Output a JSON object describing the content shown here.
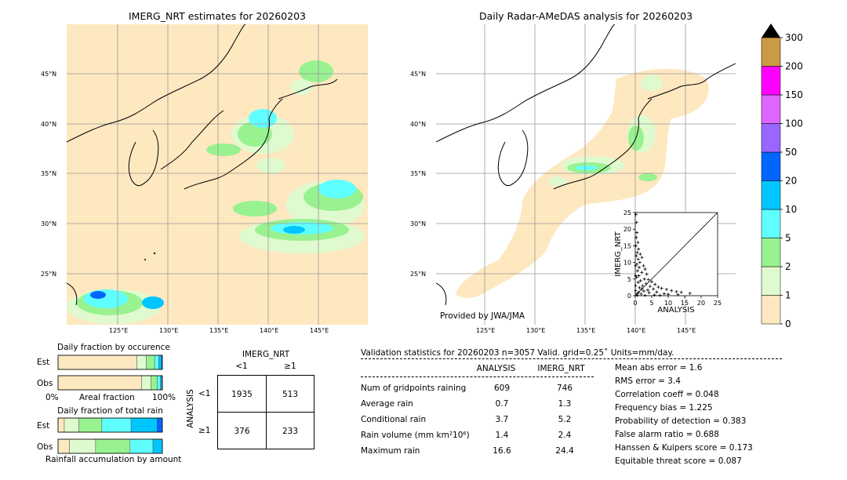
{
  "left_map": {
    "title": "IMERG_NRT estimates for 20260203",
    "lat_labels": [
      "45°N",
      "40°N",
      "35°N",
      "30°N",
      "25°N"
    ],
    "lon_labels": [
      "125°E",
      "130°E",
      "135°E",
      "140°E",
      "145°E"
    ]
  },
  "right_map": {
    "title": "Daily Radar-AMeDAS analysis for 20260203",
    "lat_labels": [
      "45°N",
      "40°N",
      "35°N",
      "30°N",
      "25°N"
    ],
    "lon_labels": [
      "125°E",
      "130°E",
      "135°E",
      "140°E",
      "145°E"
    ],
    "credit": "Provided by JWA/JMA"
  },
  "colorbar": {
    "labels": [
      "0",
      "1",
      "2",
      "5",
      "10",
      "20",
      "50",
      "100",
      "150",
      "200",
      "300"
    ],
    "colors": [
      "#fde8c0",
      "#e0fad0",
      "#98f290",
      "#60ffff",
      "#00c6ff",
      "#0066ff",
      "#9966ff",
      "#dd66ff",
      "#ff00ff",
      "#cc9944"
    ],
    "extend_color": "#000000"
  },
  "chart_data": [
    {
      "type": "scatter",
      "xlabel": "ANALYSIS",
      "ylabel": "IMERG_NRT",
      "xlim": [
        0,
        25
      ],
      "ylim": [
        0,
        25
      ],
      "xticks": [
        "0",
        "5",
        "10",
        "15",
        "20",
        "25"
      ],
      "yticks": [
        "0",
        "5",
        "10",
        "15",
        "20",
        "25"
      ],
      "diagonal": true,
      "points": [
        [
          0.2,
          24.4
        ],
        [
          0.4,
          22
        ],
        [
          0.5,
          19
        ],
        [
          0.3,
          17.5
        ],
        [
          0.8,
          16
        ],
        [
          0.2,
          15
        ],
        [
          1,
          14
        ],
        [
          0.6,
          13
        ],
        [
          1.5,
          12.5
        ],
        [
          0.3,
          12
        ],
        [
          2,
          11.5
        ],
        [
          0.9,
          11
        ],
        [
          1.4,
          10
        ],
        [
          0.5,
          9.5
        ],
        [
          2.5,
          9
        ],
        [
          1.2,
          8.5
        ],
        [
          3,
          8
        ],
        [
          0.7,
          7.5
        ],
        [
          2,
          7
        ],
        [
          3.5,
          6.5
        ],
        [
          1.1,
          6
        ],
        [
          0.4,
          5.5
        ],
        [
          2.8,
          5
        ],
        [
          4,
          4.8
        ],
        [
          1.6,
          4.5
        ],
        [
          5,
          4.2
        ],
        [
          0.9,
          4
        ],
        [
          3.3,
          3.6
        ],
        [
          6,
          3.4
        ],
        [
          2.2,
          3
        ],
        [
          4.5,
          2.8
        ],
        [
          7,
          2.6
        ],
        [
          1.3,
          2.4
        ],
        [
          8,
          2.2
        ],
        [
          5.5,
          2
        ],
        [
          9.5,
          1.9
        ],
        [
          3.8,
          1.7
        ],
        [
          11,
          1.5
        ],
        [
          2.6,
          1.4
        ],
        [
          12.5,
          1.2
        ],
        [
          6.5,
          1.1
        ],
        [
          14,
          1
        ],
        [
          4.2,
          0.9
        ],
        [
          16.6,
          0.7
        ],
        [
          8.8,
          0.6
        ],
        [
          1.8,
          0.5
        ],
        [
          10,
          0.4
        ],
        [
          13,
          0.3
        ],
        [
          5.8,
          0.2
        ],
        [
          0.6,
          0.1
        ],
        [
          3,
          0.1
        ],
        [
          7.5,
          0.1
        ],
        [
          0.1,
          3
        ],
        [
          0.1,
          6
        ],
        [
          0.1,
          9
        ],
        [
          0.1,
          1.5
        ],
        [
          1,
          1
        ],
        [
          2,
          2
        ],
        [
          0.5,
          0.5
        ]
      ]
    },
    {
      "type": "bar",
      "title": "Daily fraction by occurence",
      "orientation": "horizontal-stacked",
      "categories": [
        "Est",
        "Obs"
      ],
      "series": [
        {
          "color": "#fde8c0",
          "values": [
            0.756,
            0.801
          ]
        },
        {
          "color": "#e0fad0",
          "values": [
            0.09,
            0.09
          ]
        },
        {
          "color": "#98f290",
          "values": [
            0.08,
            0.06
          ]
        },
        {
          "color": "#60ffff",
          "values": [
            0.04,
            0.03
          ]
        },
        {
          "color": "#00c6ff",
          "values": [
            0.025,
            0.015
          ]
        },
        {
          "color": "#0066ff",
          "values": [
            0.009,
            0.004
          ]
        }
      ],
      "xlabel": "Areal fraction",
      "xmin_label": "0%",
      "xmax_label": "100%"
    },
    {
      "type": "bar",
      "title": "Daily fraction of total rain",
      "orientation": "horizontal-stacked",
      "categories": [
        "Est",
        "Obs"
      ],
      "series": [
        {
          "color": "#fde8c0",
          "values": [
            0.06,
            0.11
          ]
        },
        {
          "color": "#e0fad0",
          "values": [
            0.14,
            0.25
          ]
        },
        {
          "color": "#98f290",
          "values": [
            0.22,
            0.33
          ]
        },
        {
          "color": "#60ffff",
          "values": [
            0.28,
            0.22
          ]
        },
        {
          "color": "#00c6ff",
          "values": [
            0.25,
            0.09
          ]
        },
        {
          "color": "#0066ff",
          "values": [
            0.05,
            0.0
          ]
        }
      ],
      "xlabel": "Rainfall accumulation by amount"
    }
  ],
  "contingency": {
    "col_title": "IMERG_NRT",
    "row_title": "ANALYSIS",
    "col_headers": [
      "<1",
      "≥1"
    ],
    "row_headers": [
      "<1",
      "≥1"
    ],
    "cells": [
      [
        "1935",
        "513"
      ],
      [
        "376",
        "233"
      ]
    ]
  },
  "validation": {
    "header": "Validation statistics for 20260203  n=3057 Valid. grid=0.25˚ Units=mm/day.",
    "col_headers": [
      "ANALYSIS",
      "IMERG_NRT"
    ],
    "rows": [
      {
        "label": "Num of gridpoints raining",
        "a": "609",
        "b": "746"
      },
      {
        "label": "Average rain",
        "a": "0.7",
        "b": "1.3"
      },
      {
        "label": "Conditional rain",
        "a": "3.7",
        "b": "5.2"
      },
      {
        "label": "Rain volume (mm km²10⁶)",
        "a": "1.4",
        "b": "2.4"
      },
      {
        "label": "Maximum rain",
        "a": "16.6",
        "b": "24.4"
      }
    ],
    "scores": [
      "Mean abs error =    1.6",
      "RMS error =    3.4",
      "Correlation coeff =  0.048",
      "Frequency bias =  1.225",
      "Probability of detection =  0.383",
      "False alarm ratio =  0.688",
      "Hanssen & Kuipers score =  0.173",
      "Equitable threat score =  0.087"
    ]
  }
}
